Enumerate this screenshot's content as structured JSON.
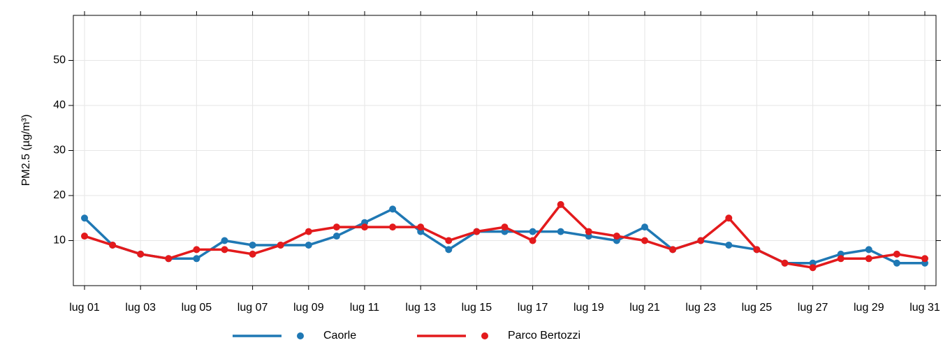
{
  "chart_data": {
    "type": "line",
    "y_label": "PM2.5 (µg/m³)",
    "categories": [
      "lug 01",
      null,
      "lug 03",
      null,
      "lug 05",
      null,
      "lug 07",
      null,
      "lug 09",
      null,
      "lug 11",
      null,
      "lug 13",
      null,
      "lug 15",
      null,
      "lug 17",
      null,
      "lug 19",
      null,
      "lug 21",
      null,
      "lug 23",
      null,
      "lug 25",
      null,
      "lug 27",
      null,
      "lug 29",
      null,
      "lug 31"
    ],
    "series": [
      {
        "name": "Caorle",
        "color": "#1f78b4",
        "values": [
          15,
          9,
          7,
          6,
          6,
          10,
          9,
          9,
          9,
          11,
          14,
          17,
          12,
          8,
          12,
          12,
          12,
          12,
          11,
          10,
          13,
          8,
          10,
          9,
          8,
          5,
          5,
          7,
          8,
          5,
          5
        ]
      },
      {
        "name": "Parco Bertozzi",
        "color": "#e31a1c",
        "values": [
          11,
          9,
          7,
          6,
          8,
          8,
          7,
          9,
          12,
          13,
          13,
          13,
          13,
          10,
          12,
          13,
          10,
          18,
          12,
          11,
          10,
          8,
          10,
          15,
          8,
          5,
          4,
          6,
          6,
          7,
          6
        ]
      }
    ],
    "ylim": [
      0,
      60
    ],
    "yticks": [
      10,
      20,
      30,
      40,
      50
    ],
    "grid": true,
    "legend": "bottom"
  }
}
